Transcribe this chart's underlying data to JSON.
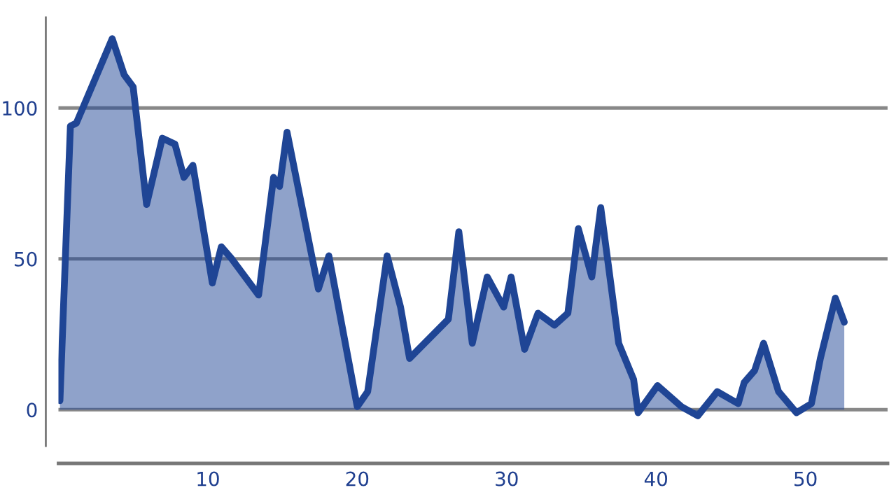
{
  "chart_data": {
    "type": "area",
    "x": [
      0.1,
      0.8,
      1.2,
      3.6,
      4.4,
      5.0,
      5.9,
      6.95,
      7.8,
      8.4,
      9.0,
      10.3,
      10.9,
      11.6,
      13.4,
      14.4,
      14.8,
      15.3,
      17.4,
      18.1,
      20.0,
      20.7,
      22.0,
      22.9,
      23.5,
      26.1,
      26.8,
      27.7,
      28.7,
      29.8,
      30.3,
      31.2,
      32.1,
      33.2,
      34.1,
      34.8,
      35.7,
      36.3,
      37.5,
      38.5,
      38.8,
      40.1,
      41.7,
      42.8,
      44.1,
      45.5,
      45.9,
      46.6,
      47.2,
      48.2,
      49.4,
      50.4,
      51.0,
      52.0,
      52.6
    ],
    "series": [
      {
        "color": "#1f4595",
        "values": [
          3,
          94,
          95,
          123,
          111,
          107,
          68,
          90,
          88,
          77,
          81,
          42,
          54,
          50,
          38,
          77,
          74,
          92,
          40,
          51,
          1,
          6,
          51,
          34,
          17,
          30,
          59,
          22,
          44,
          34,
          44,
          20,
          32,
          28,
          32,
          60,
          44,
          67,
          22,
          10,
          -1,
          8,
          1,
          -2,
          6,
          2,
          9,
          13,
          22,
          6,
          -1,
          2,
          17,
          37,
          29
        ]
      }
    ],
    "xlim": [
      0,
      55.5
    ],
    "xticks": [
      10,
      20,
      30,
      40,
      50
    ],
    "ylim": [
      -12,
      130
    ],
    "yticks": [
      0,
      50,
      100
    ],
    "grid": "y",
    "legend": false,
    "marker": "none",
    "line_style": "solid"
  }
}
